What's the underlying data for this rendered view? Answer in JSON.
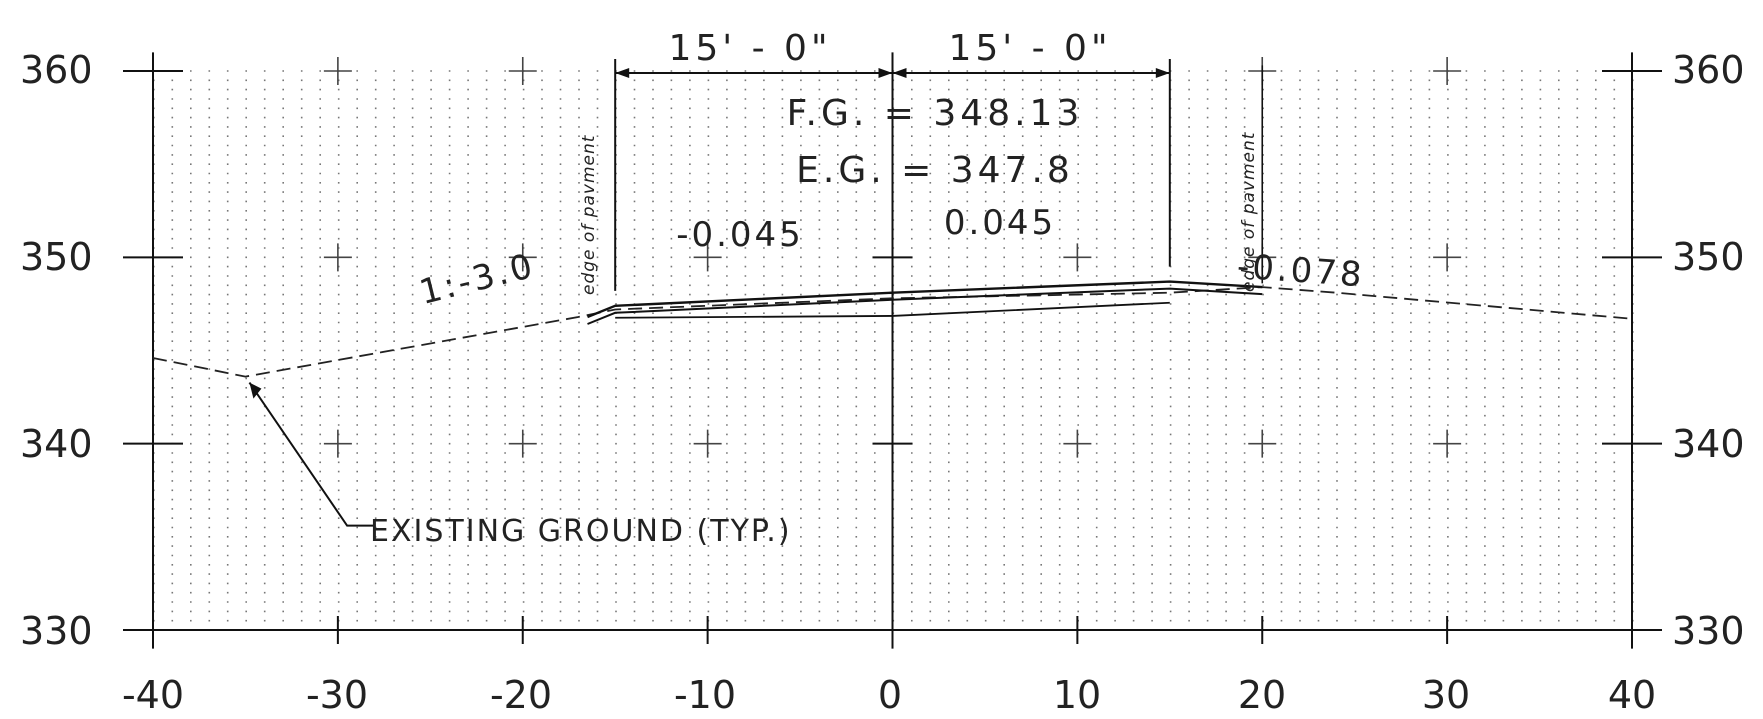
{
  "drawing": {
    "x_range": [
      -40,
      40
    ],
    "y_range": [
      330,
      360
    ],
    "x_ticks": [
      -40,
      -30,
      -20,
      -10,
      0,
      10,
      20,
      30,
      40
    ],
    "x_tick_labels": [
      "-40",
      "-30",
      "-20",
      "-10",
      "0",
      "10",
      "20",
      "30",
      "40"
    ],
    "y_ticks": [
      330,
      340,
      350,
      360
    ],
    "y_tick_labels": [
      "330",
      "340",
      "350",
      "360"
    ],
    "dimensions": {
      "left": "15' - 0\"",
      "right": "15' - 0\""
    },
    "fg_label": "F.G. = 348.13",
    "eg_label": "E.G. = 347.8",
    "slope_left": "-0.045",
    "slope_right": "0.045",
    "slope_outer_right": "-0.078",
    "side_slope_label": "1:-3.0",
    "edge_left": "edge of pavment",
    "edge_right": "edge of pavment",
    "existing_ground_label": "EXISTING GROUND (TYP.)",
    "existing_ground_points": [
      [
        -40,
        344.6
      ],
      [
        -35,
        343.6
      ],
      [
        -17,
        346.8
      ],
      [
        -15,
        347.2
      ],
      [
        0,
        347.8
      ],
      [
        15,
        348.1
      ],
      [
        20,
        348.4
      ],
      [
        24,
        348.1
      ],
      [
        40,
        346.7
      ]
    ],
    "finished_grade_points": [
      [
        -16.5,
        346.8
      ],
      [
        -15,
        347.4
      ],
      [
        0,
        348.1
      ],
      [
        15,
        348.7
      ],
      [
        20,
        348.4
      ]
    ]
  }
}
